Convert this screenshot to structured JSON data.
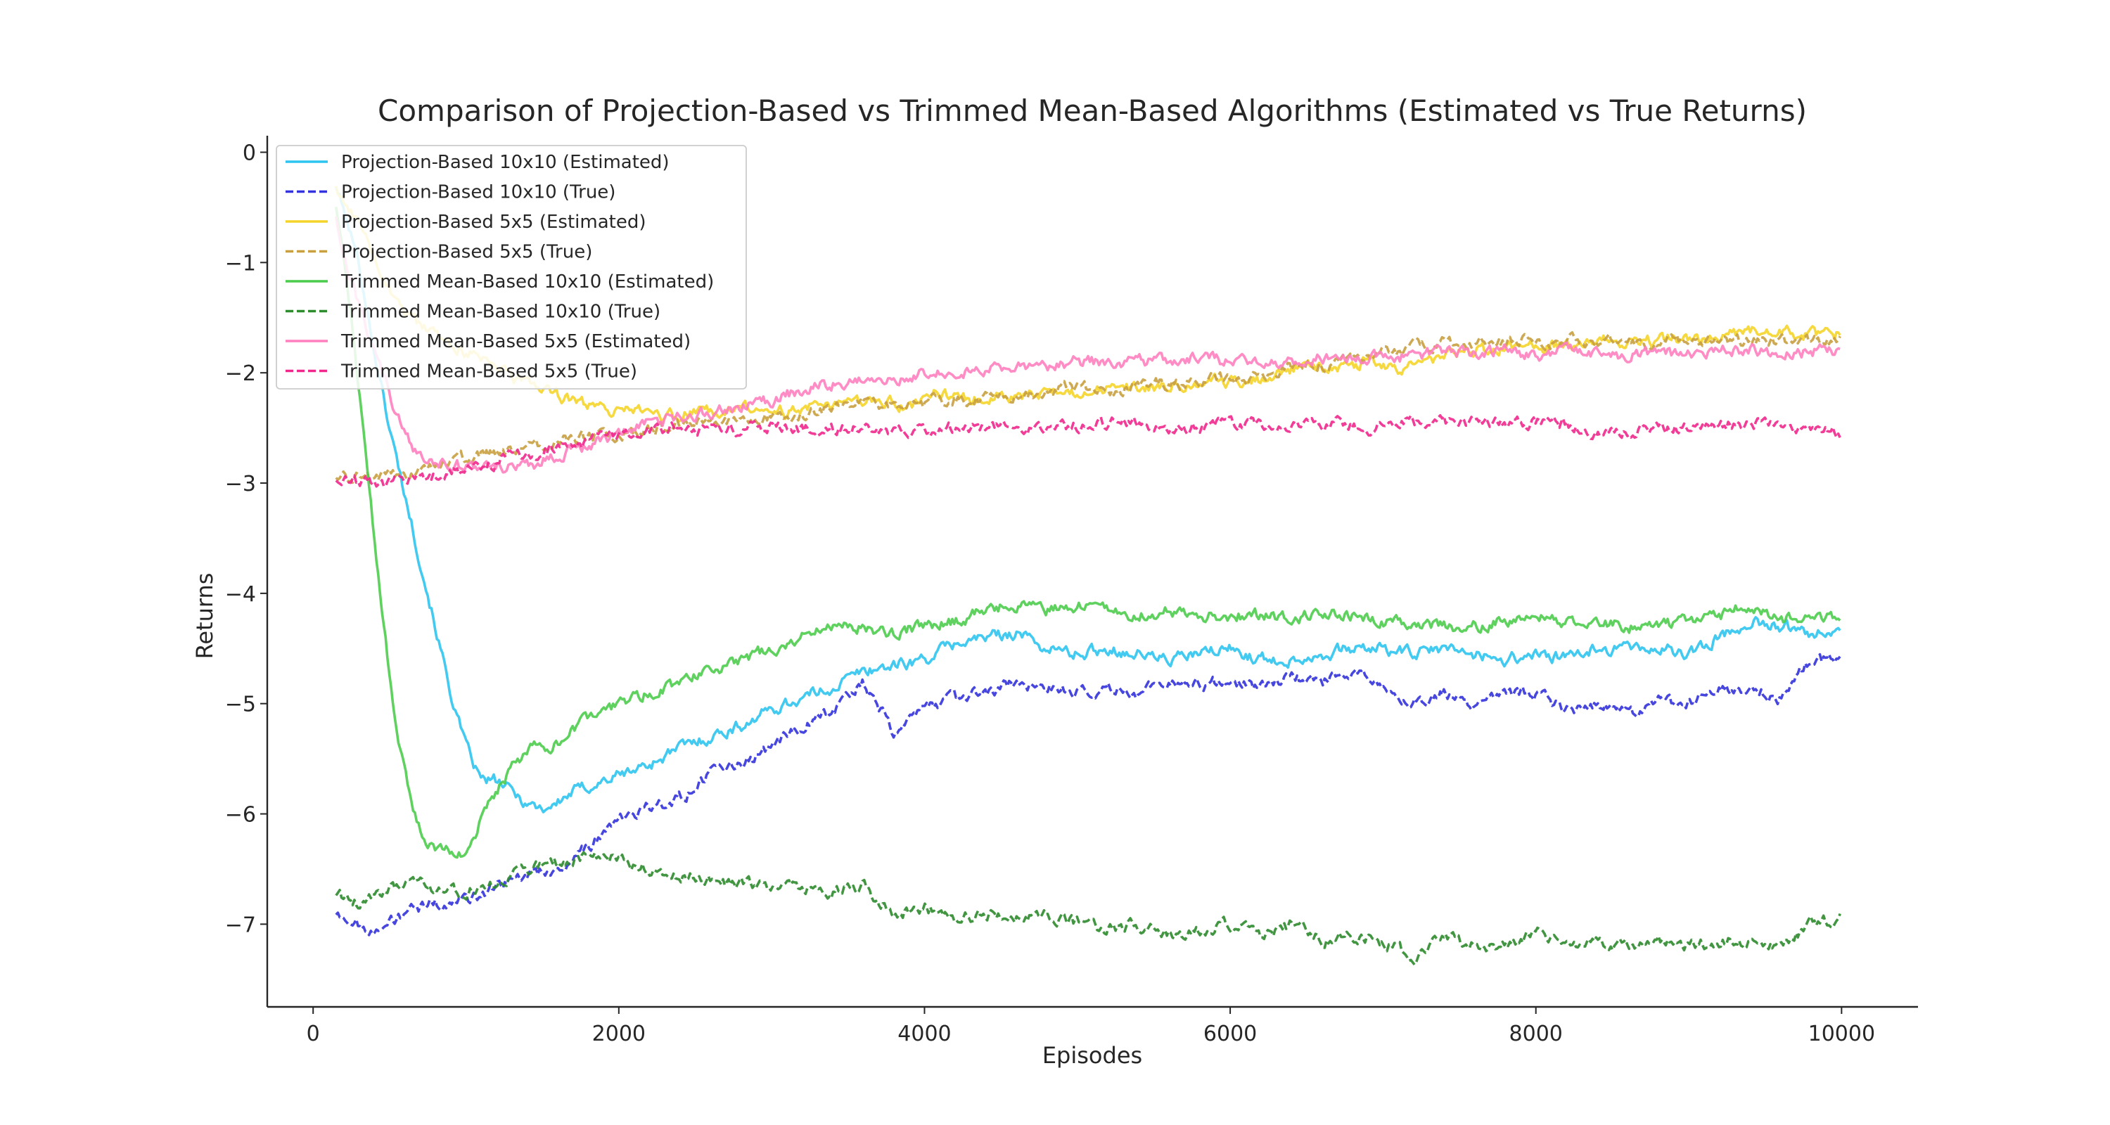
{
  "chart_data": {
    "type": "line",
    "title": "Comparison of Projection-Based vs Trimmed Mean-Based Algorithms (Estimated vs True Returns)",
    "xlabel": "Episodes",
    "ylabel": "Returns",
    "xlim": [
      -300,
      10500
    ],
    "ylim": [
      -7.75,
      0.15
    ],
    "xticks": [
      0,
      2000,
      4000,
      6000,
      8000,
      10000
    ],
    "xtick_labels": [
      "0",
      "2000",
      "4000",
      "6000",
      "8000",
      "10000"
    ],
    "yticks": [
      0,
      -1,
      -2,
      -3,
      -4,
      -5,
      -6,
      -7
    ],
    "ytick_labels": [
      "0",
      "−1",
      "−2",
      "−3",
      "−4",
      "−5",
      "−6",
      "−7"
    ],
    "grid": false,
    "legend_position": "top-left",
    "series": [
      {
        "name": "Projection-Based 10x10 (Estimated)",
        "color": "#2ec4f0",
        "dash": "solid",
        "x": [
          150,
          300,
          400,
          500,
          600,
          700,
          800,
          900,
          1000,
          1100,
          1200,
          1300,
          1400,
          1500,
          1600,
          1700,
          1800,
          1900,
          2000,
          2200,
          2400,
          2600,
          2800,
          3000,
          3200,
          3400,
          3600,
          3800,
          4000,
          4200,
          4400,
          4600,
          4800,
          5000,
          5200,
          5400,
          5600,
          5800,
          6000,
          6200,
          6400,
          6600,
          6800,
          7000,
          7200,
          7400,
          7600,
          7800,
          8000,
          8200,
          8400,
          8600,
          8800,
          9000,
          9200,
          9400,
          9600,
          9800,
          10000
        ],
        "values": [
          -0.3,
          -1.0,
          -1.8,
          -2.5,
          -3.1,
          -3.7,
          -4.3,
          -4.9,
          -5.4,
          -5.7,
          -5.7,
          -5.8,
          -5.9,
          -5.95,
          -5.9,
          -5.8,
          -5.75,
          -5.7,
          -5.65,
          -5.55,
          -5.4,
          -5.3,
          -5.2,
          -5.05,
          -4.95,
          -4.85,
          -4.7,
          -4.65,
          -4.6,
          -4.45,
          -4.4,
          -4.35,
          -4.5,
          -4.55,
          -4.5,
          -4.55,
          -4.6,
          -4.55,
          -4.5,
          -4.6,
          -4.6,
          -4.55,
          -4.5,
          -4.5,
          -4.55,
          -4.5,
          -4.55,
          -4.6,
          -4.55,
          -4.6,
          -4.5,
          -4.5,
          -4.5,
          -4.55,
          -4.4,
          -4.25,
          -4.3,
          -4.35,
          -4.3
        ]
      },
      {
        "name": "Projection-Based 10x10 (True)",
        "color": "#3333dd",
        "dash": "dashed",
        "x": [
          150,
          300,
          450,
          600,
          800,
          1000,
          1200,
          1400,
          1600,
          1800,
          2000,
          2200,
          2400,
          2600,
          2800,
          3000,
          3200,
          3400,
          3600,
          3800,
          4000,
          4200,
          4400,
          4600,
          4800,
          5000,
          5200,
          5400,
          5600,
          5800,
          6000,
          6200,
          6400,
          6600,
          6800,
          7000,
          7200,
          7400,
          7600,
          7800,
          8000,
          8200,
          8400,
          8600,
          8800,
          9000,
          9200,
          9400,
          9600,
          9800,
          10000
        ],
        "values": [
          -6.9,
          -7.0,
          -7.05,
          -6.9,
          -6.8,
          -6.8,
          -6.65,
          -6.55,
          -6.5,
          -6.3,
          -6.05,
          -5.95,
          -5.85,
          -5.65,
          -5.55,
          -5.4,
          -5.2,
          -5.05,
          -4.8,
          -5.25,
          -5.05,
          -4.95,
          -4.9,
          -4.8,
          -4.85,
          -4.9,
          -4.85,
          -4.9,
          -4.8,
          -4.8,
          -4.8,
          -4.85,
          -4.75,
          -4.8,
          -4.7,
          -4.85,
          -5.0,
          -4.9,
          -5.0,
          -4.9,
          -4.9,
          -5.05,
          -5.0,
          -5.1,
          -5.0,
          -5.0,
          -4.85,
          -4.85,
          -4.95,
          -4.6,
          -4.6
        ]
      },
      {
        "name": "Projection-Based 5x5 (Estimated)",
        "color": "#f5d42a",
        "dash": "solid",
        "x": [
          150,
          250,
          350,
          450,
          550,
          700,
          900,
          1100,
          1300,
          1500,
          1700,
          1900,
          2100,
          2300,
          2500,
          2700,
          2900,
          3100,
          3300,
          3500,
          3700,
          3900,
          4100,
          4300,
          4500,
          4700,
          4900,
          5100,
          5300,
          5500,
          5700,
          5900,
          6100,
          6300,
          6500,
          6700,
          6900,
          7100,
          7300,
          7500,
          7700,
          7900,
          8100,
          8300,
          8500,
          8700,
          8900,
          9100,
          9300,
          9500,
          9700,
          10000
        ],
        "values": [
          -0.3,
          -0.55,
          -0.8,
          -1.1,
          -1.35,
          -1.6,
          -1.75,
          -1.85,
          -2.05,
          -2.15,
          -2.25,
          -2.35,
          -2.35,
          -2.4,
          -2.35,
          -2.35,
          -2.3,
          -2.35,
          -2.3,
          -2.3,
          -2.25,
          -2.3,
          -2.2,
          -2.25,
          -2.2,
          -2.2,
          -2.2,
          -2.15,
          -2.15,
          -2.15,
          -2.1,
          -2.05,
          -2.1,
          -2.0,
          -1.95,
          -1.95,
          -1.9,
          -1.95,
          -1.9,
          -1.8,
          -1.8,
          -1.75,
          -1.75,
          -1.75,
          -1.7,
          -1.7,
          -1.7,
          -1.7,
          -1.65,
          -1.6,
          -1.65,
          -1.65
        ]
      },
      {
        "name": "Projection-Based 5x5 (True)",
        "color": "#c8a040",
        "dash": "dashed",
        "x": [
          150,
          300,
          500,
          700,
          900,
          1100,
          1300,
          1500,
          1700,
          1900,
          2100,
          2300,
          2500,
          2700,
          2900,
          3100,
          3300,
          3500,
          3700,
          3900,
          4100,
          4300,
          4500,
          4700,
          4900,
          5100,
          5300,
          5500,
          5700,
          5900,
          6100,
          6300,
          6500,
          6700,
          6900,
          7100,
          7300,
          7500,
          7700,
          7900,
          8100,
          8300,
          8500,
          8700,
          8900,
          9100,
          9300,
          9500,
          9700,
          10000
        ],
        "values": [
          -2.95,
          -2.95,
          -2.95,
          -2.9,
          -2.8,
          -2.75,
          -2.7,
          -2.65,
          -2.6,
          -2.55,
          -2.55,
          -2.5,
          -2.45,
          -2.45,
          -2.4,
          -2.4,
          -2.35,
          -2.3,
          -2.3,
          -2.3,
          -2.25,
          -2.25,
          -2.2,
          -2.2,
          -2.15,
          -2.15,
          -2.15,
          -2.1,
          -2.1,
          -2.05,
          -2.05,
          -2.0,
          -1.95,
          -1.9,
          -1.85,
          -1.8,
          -1.75,
          -1.7,
          -1.75,
          -1.7,
          -1.75,
          -1.7,
          -1.7,
          -1.75,
          -1.7,
          -1.75,
          -1.7,
          -1.7,
          -1.75,
          -1.7
        ]
      },
      {
        "name": "Trimmed Mean-Based 10x10 (Estimated)",
        "color": "#4ccc4c",
        "dash": "solid",
        "x": [
          150,
          250,
          350,
          450,
          550,
          650,
          750,
          850,
          950,
          1050,
          1150,
          1300,
          1450,
          1600,
          1800,
          2000,
          2200,
          2400,
          2600,
          2800,
          3000,
          3200,
          3400,
          3600,
          3800,
          4000,
          4200,
          4400,
          4600,
          4800,
          5000,
          5200,
          5400,
          5600,
          5800,
          6000,
          6200,
          6400,
          6600,
          6800,
          7000,
          7200,
          7400,
          7600,
          7800,
          8000,
          8200,
          8400,
          8600,
          8800,
          9000,
          9200,
          9400,
          9600,
          9800,
          10000
        ],
        "values": [
          -0.5,
          -1.5,
          -2.8,
          -4.2,
          -5.3,
          -6.0,
          -6.3,
          -6.3,
          -6.4,
          -6.2,
          -5.9,
          -5.6,
          -5.4,
          -5.35,
          -5.15,
          -5.0,
          -4.9,
          -4.8,
          -4.7,
          -4.6,
          -4.5,
          -4.4,
          -4.3,
          -4.3,
          -4.35,
          -4.3,
          -4.25,
          -4.15,
          -4.1,
          -4.15,
          -4.1,
          -4.15,
          -4.2,
          -4.15,
          -4.2,
          -4.2,
          -4.2,
          -4.25,
          -4.15,
          -4.2,
          -4.25,
          -4.25,
          -4.3,
          -4.3,
          -4.25,
          -4.2,
          -4.25,
          -4.25,
          -4.3,
          -4.3,
          -4.25,
          -4.2,
          -4.1,
          -4.25,
          -4.2,
          -4.25
        ]
      },
      {
        "name": "Trimmed Mean-Based 10x10 (True)",
        "color": "#2e8b2e",
        "dash": "dashed",
        "x": [
          150,
          300,
          450,
          600,
          800,
          1000,
          1200,
          1400,
          1600,
          1800,
          2000,
          2200,
          2400,
          2600,
          2800,
          3000,
          3200,
          3400,
          3600,
          3800,
          4000,
          4200,
          4400,
          4600,
          4800,
          5000,
          5200,
          5400,
          5600,
          5800,
          6000,
          6200,
          6400,
          6600,
          6800,
          7000,
          7200,
          7400,
          7600,
          7800,
          8000,
          8200,
          8400,
          8600,
          8800,
          9000,
          9200,
          9400,
          9600,
          9800,
          10000
        ],
        "values": [
          -6.75,
          -6.8,
          -6.75,
          -6.6,
          -6.7,
          -6.7,
          -6.65,
          -6.5,
          -6.45,
          -6.4,
          -6.4,
          -6.5,
          -6.55,
          -6.6,
          -6.65,
          -6.65,
          -6.65,
          -6.7,
          -6.65,
          -6.9,
          -6.85,
          -6.95,
          -6.9,
          -6.95,
          -6.9,
          -7.0,
          -7.05,
          -7.0,
          -7.1,
          -7.05,
          -7.0,
          -7.1,
          -7.0,
          -7.15,
          -7.1,
          -7.15,
          -7.3,
          -7.1,
          -7.2,
          -7.2,
          -7.05,
          -7.2,
          -7.15,
          -7.2,
          -7.15,
          -7.2,
          -7.15,
          -7.15,
          -7.2,
          -7.0,
          -6.95
        ]
      },
      {
        "name": "Trimmed Mean-Based 5x5 (Estimated)",
        "color": "#ff7fbf",
        "dash": "solid",
        "x": [
          150,
          250,
          350,
          450,
          550,
          650,
          750,
          850,
          1000,
          1200,
          1400,
          1600,
          1800,
          2000,
          2200,
          2400,
          2600,
          2800,
          3000,
          3200,
          3400,
          3600,
          3800,
          4000,
          4200,
          4400,
          4600,
          4800,
          5000,
          5200,
          5400,
          5600,
          5800,
          6000,
          6200,
          6400,
          6600,
          6800,
          7000,
          7200,
          7400,
          7600,
          7800,
          8000,
          8200,
          8400,
          8600,
          8800,
          9000,
          9200,
          9400,
          9600,
          9800,
          10000
        ],
        "values": [
          -0.6,
          -1.2,
          -1.6,
          -2.0,
          -2.4,
          -2.7,
          -2.8,
          -2.8,
          -2.85,
          -2.85,
          -2.85,
          -2.75,
          -2.65,
          -2.55,
          -2.45,
          -2.4,
          -2.35,
          -2.3,
          -2.25,
          -2.15,
          -2.1,
          -2.05,
          -2.05,
          -2.0,
          -2.0,
          -1.95,
          -1.95,
          -1.95,
          -1.9,
          -1.9,
          -1.9,
          -1.9,
          -1.85,
          -1.9,
          -1.9,
          -1.9,
          -1.85,
          -1.85,
          -1.85,
          -1.85,
          -1.8,
          -1.85,
          -1.8,
          -1.85,
          -1.8,
          -1.85,
          -1.85,
          -1.8,
          -1.85,
          -1.8,
          -1.8,
          -1.85,
          -1.8,
          -1.8
        ]
      },
      {
        "name": "Trimmed Mean-Based 5x5 (True)",
        "color": "#f0288c",
        "dash": "dashed",
        "x": [
          150,
          300,
          500,
          700,
          900,
          1100,
          1300,
          1500,
          1700,
          1900,
          2100,
          2300,
          2500,
          2700,
          2900,
          3100,
          3300,
          3500,
          3700,
          3900,
          4100,
          4300,
          4500,
          4700,
          4900,
          5100,
          5300,
          5500,
          5700,
          5900,
          6100,
          6300,
          6500,
          6700,
          6900,
          7100,
          7300,
          7500,
          7700,
          7900,
          8100,
          8300,
          8500,
          8700,
          8900,
          9100,
          9300,
          9500,
          9700,
          10000
        ],
        "values": [
          -3.0,
          -3.0,
          -3.0,
          -2.95,
          -2.9,
          -2.85,
          -2.75,
          -2.7,
          -2.65,
          -2.6,
          -2.55,
          -2.5,
          -2.5,
          -2.5,
          -2.5,
          -2.5,
          -2.5,
          -2.5,
          -2.5,
          -2.55,
          -2.5,
          -2.5,
          -2.5,
          -2.5,
          -2.5,
          -2.45,
          -2.45,
          -2.5,
          -2.5,
          -2.45,
          -2.45,
          -2.5,
          -2.45,
          -2.45,
          -2.5,
          -2.45,
          -2.45,
          -2.45,
          -2.45,
          -2.45,
          -2.45,
          -2.5,
          -2.55,
          -2.5,
          -2.5,
          -2.5,
          -2.45,
          -2.45,
          -2.5,
          -2.55
        ]
      }
    ]
  }
}
